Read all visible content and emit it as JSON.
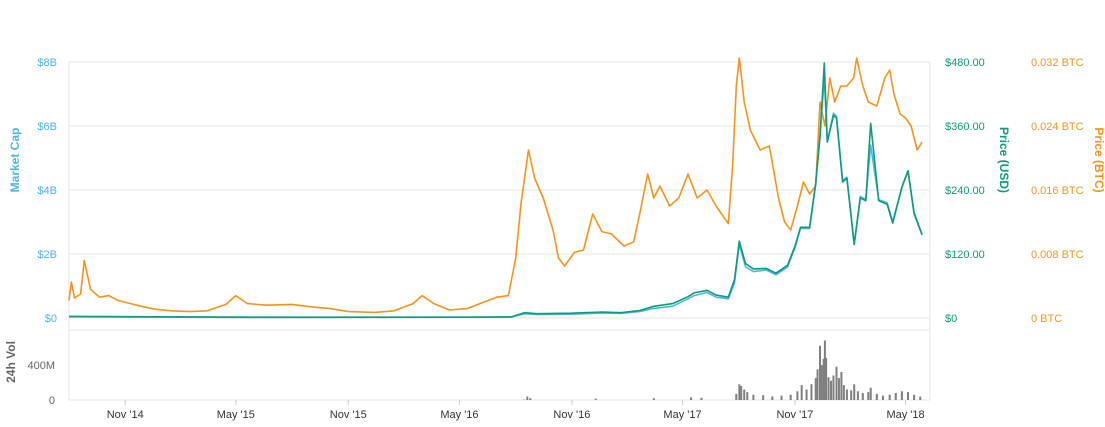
{
  "chart_data": {
    "type": "line",
    "colors": {
      "market_cap": "#4db6e6",
      "price_usd": "#0c9c7c",
      "price_btc": "#f7931a",
      "volume": "#7f7f7f",
      "grid": "#e6e6e6"
    },
    "axes": {
      "market_cap": {
        "title": "Market Cap",
        "range": [
          0,
          8000000000
        ],
        "ticks": [
          "$0",
          "$2B",
          "$4B",
          "$6B",
          "$8B"
        ]
      },
      "price_usd": {
        "title": "Price (USD)",
        "range": [
          0,
          480
        ],
        "ticks": [
          "$0",
          "$120.00",
          "$240.00",
          "$360.00",
          "$480.00"
        ]
      },
      "price_btc": {
        "title": "Price (BTC)",
        "range": [
          0,
          0.032
        ],
        "ticks": [
          "0 BTC",
          "0.008 BTC",
          "0.016 BTC",
          "0.024 BTC",
          "0.032 BTC"
        ]
      },
      "volume": {
        "title": "24h Vol",
        "range": [
          0,
          800000000
        ],
        "ticks": [
          "0",
          "400M"
        ]
      },
      "x": {
        "range": [
          "2014-08-01",
          "2018-06-10"
        ],
        "ticks": [
          {
            "date": "2014-11-01",
            "label": "Nov '14"
          },
          {
            "date": "2015-05-01",
            "label": "May '15"
          },
          {
            "date": "2015-11-01",
            "label": "Nov '15"
          },
          {
            "date": "2016-05-01",
            "label": "May '16"
          },
          {
            "date": "2016-11-01",
            "label": "Nov '16"
          },
          {
            "date": "2017-05-01",
            "label": "May '17"
          },
          {
            "date": "2017-11-01",
            "label": "Nov '17"
          },
          {
            "date": "2018-05-01",
            "label": "May '18"
          }
        ]
      }
    },
    "series": [
      {
        "name": "Price (BTC)",
        "axis": "price_btc",
        "points": [
          [
            "2014-08-01",
            0.0022
          ],
          [
            "2014-08-05",
            0.0045
          ],
          [
            "2014-08-10",
            0.0025
          ],
          [
            "2014-08-20",
            0.003
          ],
          [
            "2014-08-26",
            0.0072
          ],
          [
            "2014-09-05",
            0.0036
          ],
          [
            "2014-09-20",
            0.0026
          ],
          [
            "2014-10-05",
            0.0028
          ],
          [
            "2014-10-20",
            0.0022
          ],
          [
            "2014-11-10",
            0.0018
          ],
          [
            "2014-12-01",
            0.0014
          ],
          [
            "2014-12-20",
            0.0011
          ],
          [
            "2015-01-15",
            0.0009
          ],
          [
            "2015-02-15",
            0.0008
          ],
          [
            "2015-03-15",
            0.0009
          ],
          [
            "2015-04-15",
            0.0017
          ],
          [
            "2015-05-01",
            0.0028
          ],
          [
            "2015-05-20",
            0.0018
          ],
          [
            "2015-06-20",
            0.0016
          ],
          [
            "2015-08-01",
            0.0017
          ],
          [
            "2015-09-01",
            0.0014
          ],
          [
            "2015-10-01",
            0.0012
          ],
          [
            "2015-11-01",
            0.0008
          ],
          [
            "2015-12-15",
            0.0007
          ],
          [
            "2016-01-15",
            0.0009
          ],
          [
            "2016-02-15",
            0.0018
          ],
          [
            "2016-03-01",
            0.0028
          ],
          [
            "2016-03-20",
            0.0018
          ],
          [
            "2016-04-15",
            0.001
          ],
          [
            "2016-05-15",
            0.0012
          ],
          [
            "2016-06-10",
            0.002
          ],
          [
            "2016-07-01",
            0.0026
          ],
          [
            "2016-07-20",
            0.0028
          ],
          [
            "2016-08-01",
            0.0075
          ],
          [
            "2016-08-10",
            0.0145
          ],
          [
            "2016-08-22",
            0.021
          ],
          [
            "2016-09-01",
            0.0175
          ],
          [
            "2016-09-15",
            0.015
          ],
          [
            "2016-10-01",
            0.011
          ],
          [
            "2016-10-10",
            0.0075
          ],
          [
            "2016-10-20",
            0.0065
          ],
          [
            "2016-11-05",
            0.0082
          ],
          [
            "2016-11-20",
            0.0085
          ],
          [
            "2016-12-05",
            0.013
          ],
          [
            "2016-12-20",
            0.0108
          ],
          [
            "2017-01-05",
            0.0105
          ],
          [
            "2017-01-25",
            0.009
          ],
          [
            "2017-02-10",
            0.0095
          ],
          [
            "2017-02-20",
            0.013
          ],
          [
            "2017-03-05",
            0.018
          ],
          [
            "2017-03-15",
            0.015
          ],
          [
            "2017-03-25",
            0.0165
          ],
          [
            "2017-04-10",
            0.014
          ],
          [
            "2017-04-25",
            0.015
          ],
          [
            "2017-05-10",
            0.018
          ],
          [
            "2017-05-25",
            0.015
          ],
          [
            "2017-06-10",
            0.016
          ],
          [
            "2017-06-25",
            0.014
          ],
          [
            "2017-07-15",
            0.0118
          ],
          [
            "2017-07-22",
            0.019
          ],
          [
            "2017-07-28",
            0.029
          ],
          [
            "2017-08-02",
            0.0325
          ],
          [
            "2017-08-10",
            0.027
          ],
          [
            "2017-08-20",
            0.0235
          ],
          [
            "2017-09-05",
            0.021
          ],
          [
            "2017-09-20",
            0.0215
          ],
          [
            "2017-10-05",
            0.015
          ],
          [
            "2017-10-15",
            0.012
          ],
          [
            "2017-10-25",
            0.011
          ],
          [
            "2017-11-05",
            0.014
          ],
          [
            "2017-11-15",
            0.017
          ],
          [
            "2017-11-25",
            0.0155
          ],
          [
            "2017-12-05",
            0.0165
          ],
          [
            "2017-12-12",
            0.027
          ],
          [
            "2017-12-20",
            0.024
          ],
          [
            "2017-12-28",
            0.03
          ],
          [
            "2018-01-05",
            0.027
          ],
          [
            "2018-01-15",
            0.029
          ],
          [
            "2018-01-25",
            0.029
          ],
          [
            "2018-02-05",
            0.03
          ],
          [
            "2018-02-10",
            0.0325
          ],
          [
            "2018-02-20",
            0.029
          ],
          [
            "2018-03-01",
            0.027
          ],
          [
            "2018-03-15",
            0.0265
          ],
          [
            "2018-03-28",
            0.03
          ],
          [
            "2018-04-05",
            0.031
          ],
          [
            "2018-04-12",
            0.028
          ],
          [
            "2018-04-22",
            0.0255
          ],
          [
            "2018-05-01",
            0.025
          ],
          [
            "2018-05-10",
            0.024
          ],
          [
            "2018-05-20",
            0.021
          ],
          [
            "2018-05-28",
            0.022
          ]
        ]
      },
      {
        "name": "Market Cap",
        "axis": "market_cap",
        "points": [
          [
            "2014-08-01",
            40000000
          ],
          [
            "2015-06-01",
            20000000
          ],
          [
            "2016-06-01",
            25000000
          ],
          [
            "2016-07-25",
            30000000
          ],
          [
            "2016-08-15",
            130000000
          ],
          [
            "2016-09-05",
            110000000
          ],
          [
            "2016-11-01",
            120000000
          ],
          [
            "2016-12-20",
            160000000
          ],
          [
            "2017-01-20",
            140000000
          ],
          [
            "2017-02-20",
            200000000
          ],
          [
            "2017-03-15",
            300000000
          ],
          [
            "2017-04-15",
            370000000
          ],
          [
            "2017-05-10",
            600000000
          ],
          [
            "2017-05-20",
            700000000
          ],
          [
            "2017-06-10",
            800000000
          ],
          [
            "2017-06-25",
            650000000
          ],
          [
            "2017-07-15",
            600000000
          ],
          [
            "2017-07-25",
            1100000000
          ],
          [
            "2017-08-02",
            2300000000
          ],
          [
            "2017-08-12",
            1600000000
          ],
          [
            "2017-08-25",
            1450000000
          ],
          [
            "2017-09-15",
            1500000000
          ],
          [
            "2017-10-01",
            1350000000
          ],
          [
            "2017-10-20",
            1600000000
          ],
          [
            "2017-11-01",
            2200000000
          ],
          [
            "2017-11-10",
            2800000000
          ],
          [
            "2017-11-25",
            2800000000
          ],
          [
            "2017-12-05",
            4200000000
          ],
          [
            "2017-12-12",
            5700000000
          ],
          [
            "2017-12-19",
            7500000000
          ],
          [
            "2017-12-24",
            5500000000
          ],
          [
            "2018-01-03",
            6400000000
          ],
          [
            "2018-01-08",
            6300000000
          ],
          [
            "2018-01-18",
            4300000000
          ],
          [
            "2018-01-25",
            4400000000
          ],
          [
            "2018-02-06",
            2300000000
          ],
          [
            "2018-02-16",
            3800000000
          ],
          [
            "2018-02-25",
            3700000000
          ],
          [
            "2018-03-05",
            5400000000
          ],
          [
            "2018-03-18",
            3700000000
          ],
          [
            "2018-04-01",
            3600000000
          ],
          [
            "2018-04-10",
            3000000000
          ],
          [
            "2018-04-25",
            4100000000
          ],
          [
            "2018-05-05",
            4600000000
          ],
          [
            "2018-05-15",
            3300000000
          ],
          [
            "2018-05-28",
            2600000000
          ]
        ]
      },
      {
        "name": "Price (USD)",
        "axis": "price_usd",
        "points": [
          [
            "2014-08-01",
            3
          ],
          [
            "2015-06-01",
            1.5
          ],
          [
            "2016-06-01",
            1.5
          ],
          [
            "2016-07-25",
            2
          ],
          [
            "2016-08-15",
            10
          ],
          [
            "2016-09-05",
            8
          ],
          [
            "2016-11-01",
            9
          ],
          [
            "2016-12-20",
            11
          ],
          [
            "2017-01-20",
            10
          ],
          [
            "2017-02-20",
            14
          ],
          [
            "2017-03-15",
            22
          ],
          [
            "2017-04-15",
            27
          ],
          [
            "2017-05-10",
            40
          ],
          [
            "2017-05-20",
            47
          ],
          [
            "2017-06-10",
            52
          ],
          [
            "2017-06-25",
            43
          ],
          [
            "2017-07-15",
            39
          ],
          [
            "2017-07-25",
            72
          ],
          [
            "2017-08-02",
            144
          ],
          [
            "2017-08-12",
            102
          ],
          [
            "2017-08-25",
            92
          ],
          [
            "2017-09-15",
            93
          ],
          [
            "2017-10-01",
            84
          ],
          [
            "2017-10-20",
            99
          ],
          [
            "2017-11-01",
            135
          ],
          [
            "2017-11-10",
            170
          ],
          [
            "2017-11-25",
            170
          ],
          [
            "2017-12-05",
            252
          ],
          [
            "2017-12-12",
            340
          ],
          [
            "2017-12-19",
            478
          ],
          [
            "2017-12-24",
            330
          ],
          [
            "2018-01-03",
            380
          ],
          [
            "2018-01-08",
            375
          ],
          [
            "2018-01-18",
            255
          ],
          [
            "2018-01-25",
            262
          ],
          [
            "2018-02-06",
            138
          ],
          [
            "2018-02-16",
            225
          ],
          [
            "2018-02-25",
            220
          ],
          [
            "2018-03-05",
            365
          ],
          [
            "2018-03-18",
            220
          ],
          [
            "2018-04-01",
            213
          ],
          [
            "2018-04-10",
            178
          ],
          [
            "2018-04-25",
            245
          ],
          [
            "2018-05-05",
            276
          ],
          [
            "2018-05-15",
            195
          ],
          [
            "2018-05-28",
            156
          ]
        ]
      }
    ],
    "volume": {
      "name": "24h Vol",
      "bars": [
        [
          "2016-08-15",
          5000000
        ],
        [
          "2016-08-20",
          40000000
        ],
        [
          "2016-08-25",
          20000000
        ],
        [
          "2016-12-10",
          15000000
        ],
        [
          "2017-03-15",
          20000000
        ],
        [
          "2017-05-15",
          30000000
        ],
        [
          "2017-06-01",
          25000000
        ],
        [
          "2017-07-28",
          70000000
        ],
        [
          "2017-08-02",
          180000000
        ],
        [
          "2017-08-05",
          160000000
        ],
        [
          "2017-08-10",
          120000000
        ],
        [
          "2017-08-15",
          90000000
        ],
        [
          "2017-08-25",
          60000000
        ],
        [
          "2017-09-10",
          55000000
        ],
        [
          "2017-09-25",
          40000000
        ],
        [
          "2017-10-10",
          50000000
        ],
        [
          "2017-10-25",
          60000000
        ],
        [
          "2017-11-05",
          100000000
        ],
        [
          "2017-11-12",
          170000000
        ],
        [
          "2017-11-20",
          120000000
        ],
        [
          "2017-11-28",
          180000000
        ],
        [
          "2017-12-05",
          250000000
        ],
        [
          "2017-12-08",
          350000000
        ],
        [
          "2017-12-12",
          620000000
        ],
        [
          "2017-12-15",
          400000000
        ],
        [
          "2017-12-18",
          470000000
        ],
        [
          "2017-12-20",
          680000000
        ],
        [
          "2017-12-22",
          480000000
        ],
        [
          "2017-12-26",
          260000000
        ],
        [
          "2017-12-30",
          220000000
        ],
        [
          "2018-01-03",
          280000000
        ],
        [
          "2018-01-08",
          380000000
        ],
        [
          "2018-01-12",
          250000000
        ],
        [
          "2018-01-16",
          320000000
        ],
        [
          "2018-01-20",
          170000000
        ],
        [
          "2018-01-25",
          120000000
        ],
        [
          "2018-02-01",
          110000000
        ],
        [
          "2018-02-06",
          180000000
        ],
        [
          "2018-02-12",
          100000000
        ],
        [
          "2018-02-20",
          80000000
        ],
        [
          "2018-03-01",
          90000000
        ],
        [
          "2018-03-05",
          140000000
        ],
        [
          "2018-03-15",
          70000000
        ],
        [
          "2018-03-25",
          50000000
        ],
        [
          "2018-04-05",
          60000000
        ],
        [
          "2018-04-15",
          80000000
        ],
        [
          "2018-04-25",
          100000000
        ],
        [
          "2018-05-05",
          90000000
        ],
        [
          "2018-05-15",
          60000000
        ],
        [
          "2018-05-25",
          40000000
        ]
      ]
    }
  }
}
